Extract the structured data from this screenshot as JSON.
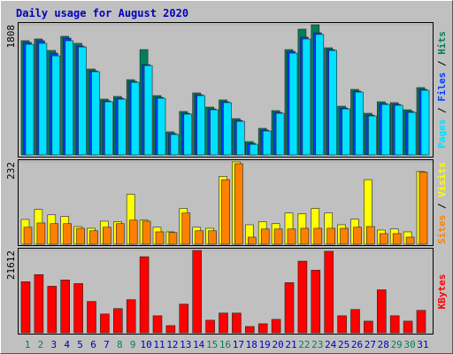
{
  "chart_data": [
    {
      "type": "bar",
      "title": "Daily usage for August 2020",
      "legend_separator": " / ",
      "series": [
        {
          "name": "Hits",
          "color": "#00805c",
          "values": [
            1587,
            1611,
            1451,
            1648,
            1550,
            1193,
            775,
            812,
            1045,
            1463,
            824,
            320,
            603,
            861,
            664,
            763,
            504,
            184,
            369,
            615,
            1463,
            1747,
            1808,
            1488,
            676,
            910,
            578,
            738,
            726,
            627,
            935
          ]
        },
        {
          "name": "Files",
          "color": "#0040ff",
          "values": [
            1562,
            1586,
            1414,
            1623,
            1513,
            1168,
            750,
            787,
            1020,
            1254,
            799,
            295,
            578,
            836,
            639,
            738,
            479,
            159,
            344,
            590,
            1438,
            1636,
            1697,
            1463,
            651,
            885,
            553,
            713,
            701,
            602,
            910
          ]
        },
        {
          "name": "Pages",
          "color": "#00e0ff",
          "values": [
            1537,
            1550,
            1377,
            1587,
            1500,
            1156,
            738,
            775,
            1008,
            1242,
            787,
            283,
            566,
            824,
            627,
            726,
            467,
            147,
            332,
            578,
            1414,
            1611,
            1673,
            1451,
            639,
            873,
            541,
            701,
            689,
            590,
            898
          ]
        }
      ],
      "ylim": [
        0,
        1808
      ],
      "yticks": [
        1808
      ]
    },
    {
      "type": "bar",
      "legend_separator": " / ",
      "series": [
        {
          "name": "Visits",
          "color": "#ffff00",
          "values": [
            70,
            98,
            83,
            78,
            50,
            45,
            65,
            63,
            141,
            68,
            48,
            35,
            101,
            48,
            45,
            191,
            232,
            55,
            63,
            58,
            88,
            86,
            101,
            88,
            55,
            71,
            182,
            40,
            43,
            35,
            205
          ]
        },
        {
          "name": "Sites",
          "color": "#ff8000",
          "values": [
            48,
            60,
            58,
            58,
            45,
            38,
            48,
            58,
            68,
            65,
            35,
            33,
            88,
            38,
            38,
            182,
            227,
            20,
            43,
            43,
            43,
            45,
            45,
            45,
            45,
            48,
            50,
            30,
            30,
            20,
            203
          ]
        }
      ],
      "ylim": [
        0,
        232
      ],
      "yticks": [
        232
      ]
    },
    {
      "type": "bar",
      "series": [
        {
          "name": "KBytes",
          "color": "#ff0000",
          "values": [
            13400,
            15270,
            12220,
            13860,
            12920,
            8220,
            4930,
            6340,
            8690,
            19970,
            4460,
            1880,
            7520,
            21612,
            3290,
            5170,
            5170,
            1640,
            2350,
            3520,
            13160,
            18800,
            16440,
            21380,
            4460,
            6110,
            3050,
            11280,
            4460,
            3050,
            5870
          ]
        }
      ],
      "ylim": [
        0,
        21612
      ],
      "yticks": [
        21612
      ],
      "categories": [
        "1",
        "2",
        "3",
        "4",
        "5",
        "6",
        "7",
        "8",
        "9",
        "10",
        "11",
        "12",
        "13",
        "14",
        "15",
        "16",
        "17",
        "18",
        "19",
        "20",
        "21",
        "22",
        "23",
        "24",
        "25",
        "26",
        "27",
        "28",
        "29",
        "30",
        "31"
      ],
      "category_colors": [
        "#00805c",
        "#00805c",
        "#0000c0",
        "#0000c0",
        "#0000c0",
        "#0000c0",
        "#0000c0",
        "#00805c",
        "#00805c",
        "#0000c0",
        "#0000c0",
        "#0000c0",
        "#0000c0",
        "#0000c0",
        "#00805c",
        "#00805c",
        "#0000c0",
        "#0000c0",
        "#0000c0",
        "#0000c0",
        "#0000c0",
        "#00805c",
        "#00805c",
        "#0000c0",
        "#0000c0",
        "#0000c0",
        "#0000c0",
        "#0000c0",
        "#00805c",
        "#00805c",
        "#0000c0"
      ]
    }
  ]
}
